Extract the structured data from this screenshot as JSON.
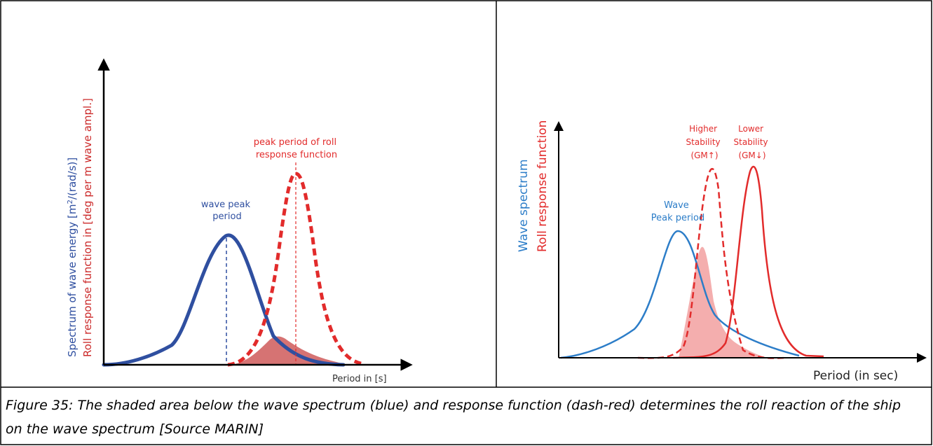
{
  "left_panel": {
    "y_axis_label_blue": "Spectrum of wave energy [m",
    "y_axis_label_sup": "2",
    "y_axis_label_blue_tail": "/(rad/s)]",
    "y_axis_label_red": "Roll response function in [deg per m wave ampl.]",
    "wave_peak_label": [
      "wave peak",
      "period"
    ],
    "roll_peak_label": [
      "peak period of roll",
      "response function"
    ],
    "x_axis_label": "Period in [s]"
  },
  "right_panel": {
    "y_axis_label_blue": "Wave spectrum",
    "y_axis_label_red": "Roll response function",
    "wave_peak_label": [
      "Wave",
      "Peak period"
    ],
    "higher_stability_label": [
      "Higher",
      "Stability",
      "(GM↑)"
    ],
    "lower_stability_label": [
      "Lower",
      "Stability",
      "(GM↓)"
    ],
    "x_axis_label": "Period (in sec)"
  },
  "caption": "Figure 35: The shaded area below the wave spectrum (blue) and response function (dash-red) determines the roll reaction of the ship on the wave spectrum [Source MARIN]",
  "colors": {
    "blue_left": "#2f4fa0",
    "blue_right": "#2c7dc8",
    "red": "#e22b2b",
    "shade": "#e89090",
    "border": "#000000"
  }
}
